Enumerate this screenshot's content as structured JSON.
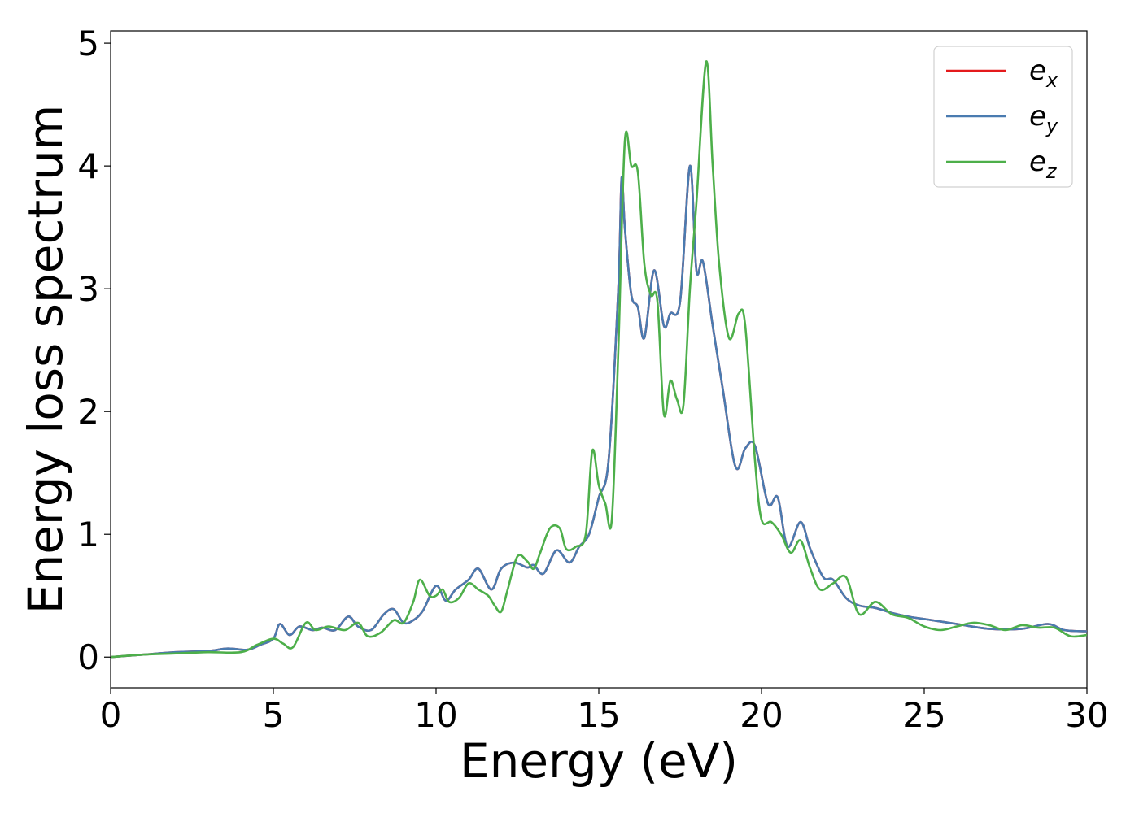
{
  "chart_data": {
    "type": "line",
    "title": "",
    "xlabel": "Energy (eV)",
    "ylabel": "Energy loss spectrum",
    "xlim": [
      0,
      30
    ],
    "ylim": [
      -0.25,
      5.1
    ],
    "xticks": [
      0,
      5,
      10,
      15,
      20,
      25,
      30
    ],
    "yticks": [
      0,
      1,
      2,
      3,
      4,
      5
    ],
    "grid": false,
    "legend_position": "top-right",
    "series": [
      {
        "name": "e",
        "subscript": "x",
        "color": "#e41a1c",
        "x": [
          0,
          1,
          2,
          3,
          3.6,
          4.2,
          4.6,
          5.0,
          5.2,
          5.5,
          5.8,
          6.2,
          6.5,
          6.9,
          7.3,
          7.6,
          8.0,
          8.4,
          8.7,
          9.0,
          9.3,
          9.6,
          10.0,
          10.3,
          10.6,
          11.0,
          11.3,
          11.7,
          12.0,
          12.4,
          12.8,
          13.0,
          13.3,
          13.7,
          14.1,
          14.4,
          14.7,
          15.0,
          15.3,
          15.6,
          15.7,
          15.8,
          16.0,
          16.2,
          16.4,
          16.7,
          17.0,
          17.2,
          17.5,
          17.8,
          18.0,
          18.2,
          18.5,
          18.8,
          19.2,
          19.5,
          19.8,
          20.2,
          20.5,
          20.8,
          21.2,
          21.5,
          21.9,
          22.2,
          22.6,
          23.0,
          23.5,
          24.0,
          24.5,
          25,
          26,
          27,
          28,
          28.8,
          29.3,
          30
        ],
        "y": [
          0,
          0.02,
          0.04,
          0.05,
          0.07,
          0.06,
          0.1,
          0.15,
          0.27,
          0.18,
          0.25,
          0.22,
          0.24,
          0.22,
          0.33,
          0.25,
          0.22,
          0.35,
          0.39,
          0.28,
          0.3,
          0.38,
          0.58,
          0.46,
          0.55,
          0.63,
          0.72,
          0.55,
          0.72,
          0.77,
          0.73,
          0.75,
          0.68,
          0.87,
          0.77,
          0.9,
          1.0,
          1.3,
          1.6,
          3.0,
          3.9,
          3.5,
          2.95,
          2.85,
          2.6,
          3.15,
          2.7,
          2.8,
          2.9,
          4.0,
          3.15,
          3.22,
          2.7,
          2.2,
          1.55,
          1.7,
          1.72,
          1.25,
          1.3,
          0.9,
          1.1,
          0.88,
          0.65,
          0.63,
          0.48,
          0.42,
          0.4,
          0.36,
          0.33,
          0.31,
          0.27,
          0.23,
          0.23,
          0.27,
          0.22,
          0.21
        ]
      },
      {
        "name": "e",
        "subscript": "y",
        "color": "#4a7bb0",
        "x": [
          0,
          1,
          2,
          3,
          3.6,
          4.2,
          4.6,
          5.0,
          5.2,
          5.5,
          5.8,
          6.2,
          6.5,
          6.9,
          7.3,
          7.6,
          8.0,
          8.4,
          8.7,
          9.0,
          9.3,
          9.6,
          10.0,
          10.3,
          10.6,
          11.0,
          11.3,
          11.7,
          12.0,
          12.4,
          12.8,
          13.0,
          13.3,
          13.7,
          14.1,
          14.4,
          14.7,
          15.0,
          15.3,
          15.6,
          15.7,
          15.8,
          16.0,
          16.2,
          16.4,
          16.7,
          17.0,
          17.2,
          17.5,
          17.8,
          18.0,
          18.2,
          18.5,
          18.8,
          19.2,
          19.5,
          19.8,
          20.2,
          20.5,
          20.8,
          21.2,
          21.5,
          21.9,
          22.2,
          22.6,
          23.0,
          23.5,
          24.0,
          24.5,
          25,
          26,
          27,
          28,
          28.8,
          29.3,
          30
        ],
        "y": [
          0,
          0.02,
          0.04,
          0.05,
          0.07,
          0.06,
          0.1,
          0.15,
          0.27,
          0.18,
          0.25,
          0.22,
          0.24,
          0.22,
          0.33,
          0.25,
          0.22,
          0.35,
          0.39,
          0.28,
          0.3,
          0.38,
          0.58,
          0.46,
          0.55,
          0.63,
          0.72,
          0.55,
          0.72,
          0.77,
          0.73,
          0.75,
          0.68,
          0.87,
          0.77,
          0.9,
          1.0,
          1.3,
          1.6,
          3.0,
          3.9,
          3.5,
          2.95,
          2.85,
          2.6,
          3.15,
          2.7,
          2.8,
          2.9,
          4.0,
          3.15,
          3.22,
          2.7,
          2.2,
          1.55,
          1.7,
          1.72,
          1.25,
          1.3,
          0.9,
          1.1,
          0.88,
          0.65,
          0.63,
          0.48,
          0.42,
          0.4,
          0.36,
          0.33,
          0.31,
          0.27,
          0.23,
          0.23,
          0.27,
          0.22,
          0.21
        ]
      },
      {
        "name": "e",
        "subscript": "z",
        "color": "#4daf4a",
        "x": [
          0,
          1,
          2,
          3,
          4,
          4.5,
          5.0,
          5.3,
          5.6,
          6.0,
          6.3,
          6.7,
          7.2,
          7.6,
          7.9,
          8.3,
          8.7,
          9.0,
          9.3,
          9.5,
          9.8,
          10.0,
          10.2,
          10.4,
          10.7,
          11.0,
          11.3,
          11.6,
          11.8,
          12.0,
          12.2,
          12.5,
          12.8,
          13.0,
          13.2,
          13.5,
          13.8,
          14.0,
          14.3,
          14.6,
          14.8,
          15.0,
          15.2,
          15.4,
          15.6,
          15.8,
          16.0,
          16.2,
          16.4,
          16.6,
          16.8,
          17.0,
          17.2,
          17.4,
          17.6,
          17.8,
          18.0,
          18.3,
          18.5,
          18.7,
          19.0,
          19.3,
          19.5,
          19.8,
          20.0,
          20.3,
          20.6,
          20.9,
          21.2,
          21.5,
          21.8,
          22.2,
          22.6,
          23.0,
          23.5,
          24.0,
          24.5,
          25.0,
          25.5,
          26.0,
          26.5,
          27.0,
          27.5,
          28,
          28.5,
          29,
          29.5,
          30
        ],
        "y": [
          0,
          0.02,
          0.03,
          0.04,
          0.04,
          0.1,
          0.15,
          0.11,
          0.08,
          0.28,
          0.22,
          0.25,
          0.22,
          0.28,
          0.17,
          0.2,
          0.3,
          0.28,
          0.45,
          0.63,
          0.5,
          0.5,
          0.55,
          0.45,
          0.48,
          0.6,
          0.55,
          0.5,
          0.42,
          0.37,
          0.55,
          0.82,
          0.78,
          0.72,
          0.85,
          1.05,
          1.05,
          0.88,
          0.9,
          1.0,
          1.68,
          1.4,
          1.25,
          1.12,
          2.5,
          4.2,
          4.0,
          3.95,
          3.2,
          2.95,
          2.9,
          1.98,
          2.25,
          2.1,
          2.05,
          3.0,
          3.7,
          4.85,
          4.0,
          3.2,
          2.6,
          2.8,
          2.7,
          1.6,
          1.12,
          1.1,
          1.0,
          0.85,
          0.95,
          0.72,
          0.55,
          0.6,
          0.65,
          0.35,
          0.45,
          0.35,
          0.32,
          0.25,
          0.22,
          0.25,
          0.28,
          0.26,
          0.22,
          0.26,
          0.24,
          0.24,
          0.17,
          0.18
        ]
      }
    ]
  }
}
